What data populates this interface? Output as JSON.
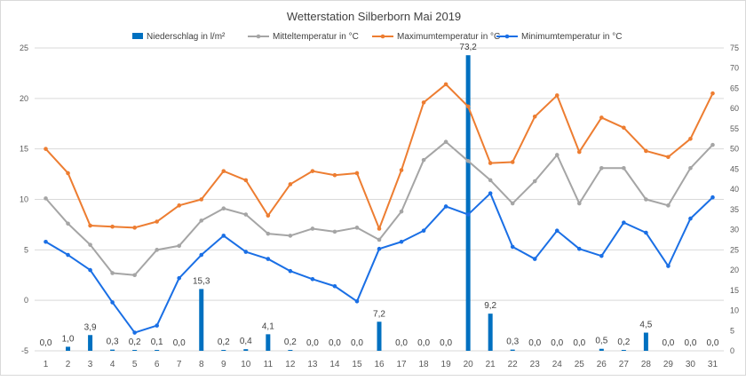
{
  "chart_data": {
    "type": "bar+line",
    "title": "Wetterstation Silberborn Mai 2019",
    "categories": [
      "1",
      "2",
      "3",
      "4",
      "5",
      "6",
      "7",
      "8",
      "9",
      "10",
      "11",
      "12",
      "13",
      "14",
      "15",
      "16",
      "17",
      "18",
      "19",
      "20",
      "21",
      "22",
      "23",
      "24",
      "25",
      "26",
      "27",
      "28",
      "29",
      "30",
      "31"
    ],
    "ylim_left": [
      -5,
      25
    ],
    "ylim_right": [
      0,
      75
    ],
    "yticks_left": [
      "-5",
      "0",
      "5",
      "10",
      "15",
      "20",
      "25"
    ],
    "yticks_right": [
      "0",
      "5",
      "10",
      "15",
      "20",
      "25",
      "30",
      "35",
      "40",
      "45",
      "50",
      "55",
      "60",
      "65",
      "70",
      "75"
    ],
    "bar_series": {
      "name": "Niederschlag in l/m²",
      "color": "#0070c0",
      "axis": "right",
      "values": [
        0.0,
        1.0,
        3.9,
        0.3,
        0.2,
        0.1,
        0.0,
        15.3,
        0.2,
        0.4,
        4.1,
        0.2,
        0.0,
        0.0,
        0.0,
        7.2,
        0.0,
        0.0,
        0.0,
        73.2,
        9.2,
        0.3,
        0.0,
        0.0,
        0.0,
        0.5,
        0.2,
        4.5,
        0.0,
        0.0,
        0.0
      ],
      "labels": [
        "0,0",
        "1,0",
        "3,9",
        "0,3",
        "0,2",
        "0,1",
        "0,0",
        "15,3",
        "0,2",
        "0,4",
        "4,1",
        "0,2",
        "0,0",
        "0,0",
        "0,0",
        "7,2",
        "0,0",
        "0,0",
        "0,0",
        "73,2",
        "9,2",
        "0,3",
        "0,0",
        "0,0",
        "0,0",
        "0,5",
        "0,2",
        "4,5",
        "0,0",
        "0,0",
        "0,0"
      ]
    },
    "line_series": [
      {
        "name": "Mitteltemperatur in °C",
        "color": "#a5a5a5",
        "axis": "left",
        "values": [
          10.1,
          7.6,
          5.5,
          2.7,
          2.5,
          5.0,
          5.4,
          7.9,
          9.1,
          8.5,
          6.6,
          6.4,
          7.1,
          6.8,
          7.2,
          6.0,
          8.8,
          13.9,
          15.7,
          13.8,
          11.9,
          9.6,
          11.8,
          14.4,
          9.6,
          13.1,
          13.1,
          10.0,
          9.4,
          13.1,
          15.4
        ]
      },
      {
        "name": "Maximumtemperatur in °C",
        "color": "#ed7d31",
        "axis": "left",
        "values": [
          15.0,
          12.6,
          7.4,
          7.3,
          7.2,
          7.8,
          9.4,
          10.0,
          12.8,
          11.9,
          8.4,
          11.5,
          12.8,
          12.4,
          12.6,
          7.1,
          12.9,
          19.6,
          21.4,
          19.2,
          13.6,
          13.7,
          18.2,
          20.3,
          14.7,
          18.1,
          17.1,
          14.8,
          14.2,
          16.0,
          20.5
        ]
      },
      {
        "name": "Minimumtemperatur in °C",
        "color": "#1a6fe5",
        "axis": "left",
        "values": [
          5.8,
          4.5,
          3.0,
          -0.2,
          -3.2,
          -2.5,
          2.2,
          4.5,
          6.4,
          4.8,
          4.1,
          2.9,
          2.1,
          1.4,
          -0.1,
          5.1,
          5.8,
          6.9,
          9.3,
          8.5,
          10.6,
          5.3,
          4.1,
          6.9,
          5.1,
          4.4,
          7.7,
          6.7,
          3.4,
          8.1,
          10.2
        ]
      }
    ]
  }
}
